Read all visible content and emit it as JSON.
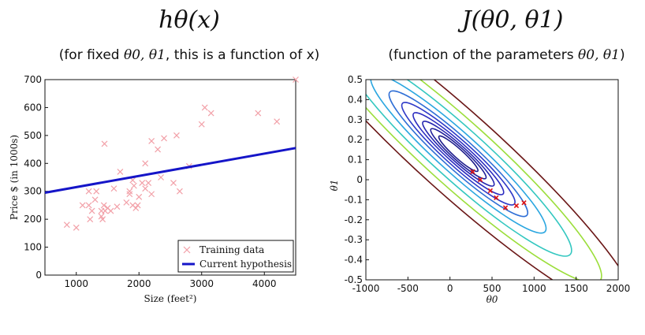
{
  "left": {
    "title": "hθ(x)",
    "subtitle_prefix": "(for fixed ",
    "subtitle_math": "θ0, θ1",
    "subtitle_suffix": ", this is a function of x)"
  },
  "right": {
    "title": "J(θ0, θ1)",
    "subtitle_prefix": "(function of the parameters ",
    "subtitle_math": "θ0, θ1",
    "subtitle_suffix": ")"
  },
  "chart_data": [
    {
      "type": "scatter",
      "title": "hθ(x)",
      "xlabel": "Size (feet²)",
      "ylabel": "Price $ (in 1000s)",
      "xlim": [
        500,
        4500
      ],
      "ylim": [
        0,
        700
      ],
      "xticks": [
        1000,
        2000,
        3000,
        4000
      ],
      "yticks": [
        0,
        100,
        200,
        300,
        400,
        500,
        600,
        700
      ],
      "legend": [
        "Training data",
        "Current hypothesis"
      ],
      "training_data": {
        "x": [
          850,
          1000,
          1100,
          1200,
          1200,
          1220,
          1250,
          1300,
          1320,
          1400,
          1400,
          1420,
          1440,
          1450,
          1460,
          1500,
          1550,
          1600,
          1650,
          1700,
          1800,
          1850,
          1850,
          1900,
          1900,
          1920,
          1950,
          1980,
          2000,
          2050,
          2100,
          2100,
          2150,
          2200,
          2200,
          2300,
          2350,
          2400,
          2550,
          2600,
          2650,
          2800,
          3000,
          3050,
          3150,
          3900,
          4200,
          4500
        ],
        "y": [
          180,
          170,
          250,
          300,
          250,
          200,
          230,
          270,
          300,
          230,
          210,
          200,
          250,
          470,
          230,
          240,
          230,
          310,
          245,
          370,
          260,
          290,
          300,
          340,
          250,
          320,
          240,
          250,
          280,
          330,
          310,
          400,
          330,
          290,
          480,
          450,
          350,
          490,
          330,
          500,
          300,
          390,
          540,
          600,
          580,
          580,
          550,
          700
        ]
      },
      "hypothesis_line": {
        "x": [
          500,
          4500
        ],
        "y": [
          295,
          455
        ]
      }
    },
    {
      "type": "contour",
      "title": "J(θ0, θ1)",
      "xlabel": "θ0",
      "ylabel": "θ1",
      "xlim": [
        -1000,
        2000
      ],
      "ylim": [
        -0.5,
        0.5
      ],
      "xticks": [
        -1000,
        -500,
        0,
        500,
        1000,
        1500,
        2000
      ],
      "yticks": [
        -0.5,
        -0.4,
        -0.3,
        -0.2,
        -0.1,
        0,
        0.1,
        0.2,
        0.3,
        0.4,
        0.5
      ],
      "ytick_labels": [
        "-0.5",
        "-0.4",
        "-0.3",
        "-0.2",
        "-0.1",
        "0",
        "0.1",
        "0.2",
        "0.3",
        "0.4",
        "0.5"
      ],
      "minimum": {
        "theta0": 100,
        "theta1": 0.13
      },
      "contour_levels": [
        {
          "k": 0.06,
          "color": "#1b1a8a"
        },
        {
          "k": 0.12,
          "color": "#20209a"
        },
        {
          "k": 0.2,
          "color": "#2626b0"
        },
        {
          "k": 0.32,
          "color": "#2b2bc0"
        },
        {
          "k": 0.5,
          "color": "#2f3ac8"
        },
        {
          "k": 0.75,
          "color": "#2f6fd6"
        },
        {
          "k": 1.2,
          "color": "#2aa6e0"
        },
        {
          "k": 2.0,
          "color": "#33c7c0"
        },
        {
          "k": 3.2,
          "color": "#9bde3a"
        },
        {
          "k": 5.0,
          "color": "#6a1616"
        }
      ],
      "descent_path": {
        "theta0": [
          270,
          360,
          480,
          550,
          660,
          790,
          880
        ],
        "theta1": [
          0.04,
          0.0,
          -0.055,
          -0.09,
          -0.14,
          -0.13,
          -0.115
        ]
      }
    }
  ]
}
